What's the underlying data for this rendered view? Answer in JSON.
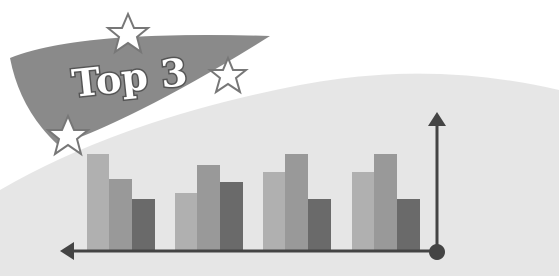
{
  "banner": {
    "title": "Top 3"
  }
}
